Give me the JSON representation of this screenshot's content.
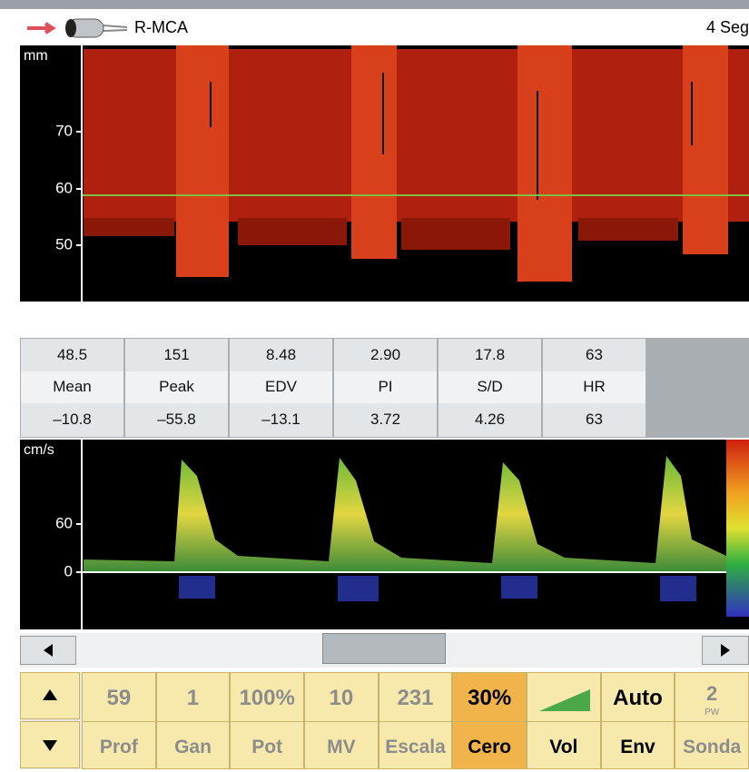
{
  "header": {
    "vessel": "R-MCA",
    "sweep": "4 Seg"
  },
  "mmode": {
    "unit": "mm",
    "ticks": [
      70,
      60,
      50
    ]
  },
  "measurements": [
    {
      "top": "48.5",
      "label": "Mean",
      "bottom": "–10.8"
    },
    {
      "top": "151",
      "label": "Peak",
      "bottom": "–55.8"
    },
    {
      "top": "8.48",
      "label": "EDV",
      "bottom": "–13.1"
    },
    {
      "top": "2.90",
      "label": "PI",
      "bottom": "3.72"
    },
    {
      "top": "17.8",
      "label": "S/D",
      "bottom": "4.26"
    },
    {
      "top": "63",
      "label": "HR",
      "bottom": "63"
    }
  ],
  "spectrum": {
    "unit": "cm/s",
    "ticks": [
      60,
      0
    ]
  },
  "toolbar": [
    {
      "value": "59",
      "label": "Prof"
    },
    {
      "value": "1",
      "label": "Gan"
    },
    {
      "value": "100%",
      "label": "Pot"
    },
    {
      "value": "10",
      "label": "MV"
    },
    {
      "value": "231",
      "label": "Escala"
    },
    {
      "value": "30%",
      "label": "Cero"
    },
    {
      "label": "Vol"
    },
    {
      "value": "Auto",
      "label": "Env"
    },
    {
      "value": "2",
      "sub": "PW",
      "label": "Sonda"
    }
  ]
}
